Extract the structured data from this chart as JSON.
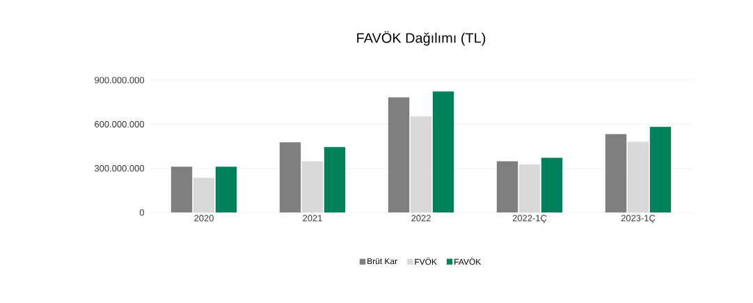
{
  "chart_data": {
    "type": "bar",
    "title": "FAVÖK Dağılımı (TL)",
    "categories": [
      "2020",
      "2021",
      "2022",
      "2022-1Ç",
      "2023-1Ç"
    ],
    "series": [
      {
        "name": "Brüt Kar",
        "color": "#7f7f7f",
        "values": [
          310000000,
          476000000,
          782000000,
          347000000,
          532000000
        ]
      },
      {
        "name": "FVÖK",
        "color": "#d9d9d9",
        "values": [
          234000000,
          347000000,
          653000000,
          326000000,
          480000000
        ]
      },
      {
        "name": "FAVÖK",
        "color": "#00805a",
        "values": [
          310000000,
          444000000,
          822000000,
          371000000,
          581000000
        ]
      }
    ],
    "ylim": [
      0,
      900000000
    ],
    "yticks": [
      0,
      {
        "value": 300000000,
        "label": "300.000.000"
      },
      {
        "value": 600000000,
        "label": "600.000.000"
      },
      {
        "value": 900000000,
        "label": "900.000.000"
      }
    ],
    "grid": "y",
    "legend": "bottom"
  }
}
